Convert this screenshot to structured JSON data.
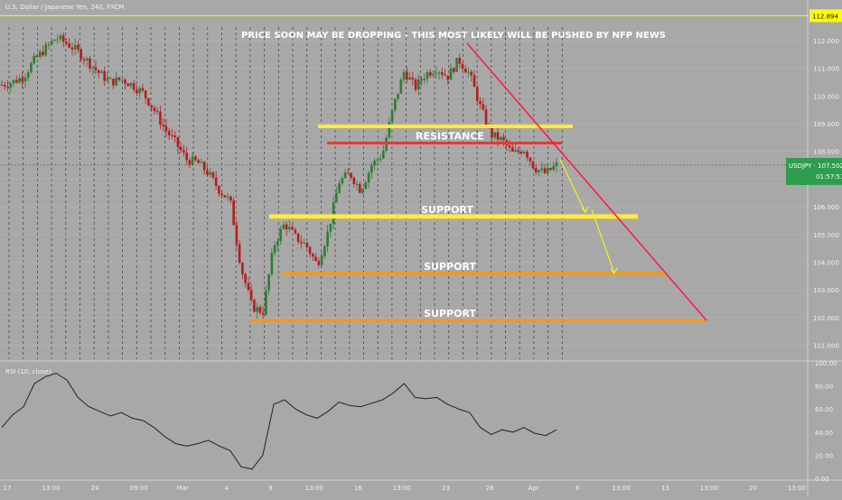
{
  "header": {
    "symbol_text": "U.S. Dollar / Japanese Yen, 240, FXCM",
    "headline": "PRICE SOON MAY BE DROPPING - THIS MOST LIKELY WILL BE PUSHED BY NFP NEWS"
  },
  "rsi_panel": {
    "label": "RSI (10, close)"
  },
  "price_badges": {
    "top_level": "112.894",
    "current": "USDJPY · 107.502",
    "countdown": "01:57:51"
  },
  "zones": [
    {
      "label": "RESISTANCE",
      "price": 108.3
    },
    {
      "label": "SUPPORT",
      "price": 105.65
    },
    {
      "label": "SUPPORT",
      "price": 103.6
    },
    {
      "label": "SUPPORT",
      "price": 101.9
    }
  ],
  "colors": {
    "background": "#a8a8a8",
    "up_candle": "#2e7d32",
    "down_candle": "#b71c1c",
    "resistance_line": "#e53935",
    "zone_yellow": "#ffeb3b",
    "zone_orange": "#ff9800",
    "trendline": "#ff1744",
    "projection_arrow": "#ffff00",
    "badge_green": "#2e9d4e"
  },
  "chart_data": [
    {
      "type": "candlestick",
      "title": "U.S. Dollar / Japanese Yen, 240, FXCM",
      "ylim": [
        100.5,
        113.2
      ],
      "yticks": [
        "101.000",
        "102.000",
        "103.000",
        "104.000",
        "105.000",
        "106.000",
        "107.000",
        "108.000",
        "109.000",
        "110.000",
        "111.000",
        "112.000"
      ],
      "xticks": [
        "17",
        "13:00",
        "24",
        "09:00",
        "Mar",
        "4",
        "9",
        "13:00",
        "16",
        "13:00",
        "23",
        "26",
        "Apr",
        "6",
        "13:00",
        "13",
        "13:00",
        "20",
        "13:00"
      ],
      "close_path": [
        110.4,
        110.5,
        110.7,
        111.3,
        111.7,
        112.1,
        111.9,
        111.6,
        111.2,
        110.8,
        110.5,
        110.6,
        110.4,
        110.1,
        109.5,
        108.8,
        108.3,
        107.7,
        107.6,
        107.2,
        106.6,
        106.2,
        103.8,
        102.4,
        102.2,
        104.6,
        105.4,
        104.9,
        104.6,
        103.9,
        105.1,
        106.9,
        107.2,
        106.6,
        107.5,
        107.9,
        109.6,
        110.9,
        110.3,
        110.8,
        111.0,
        110.7,
        111.3,
        110.8,
        109.6,
        108.6,
        108.4,
        107.9,
        108.1,
        107.4,
        107.2,
        107.502
      ],
      "current_price": 107.502,
      "top_level": 112.894
    },
    {
      "type": "line",
      "title": "RSI (10, close)",
      "ylim": [
        0,
        100
      ],
      "yticks": [
        "0.00",
        "20.00",
        "40.00",
        "60.00",
        "80.00",
        "100.00"
      ],
      "values": [
        44,
        55,
        62,
        82,
        88,
        91,
        85,
        70,
        62,
        58,
        54,
        57,
        52,
        50,
        44,
        36,
        30,
        28,
        30,
        33,
        28,
        24,
        10,
        8,
        20,
        64,
        68,
        60,
        55,
        52,
        58,
        66,
        63,
        62,
        65,
        68,
        74,
        82,
        70,
        69,
        70,
        64,
        60,
        57,
        44,
        38,
        42,
        40,
        44,
        39,
        37,
        42
      ]
    }
  ]
}
